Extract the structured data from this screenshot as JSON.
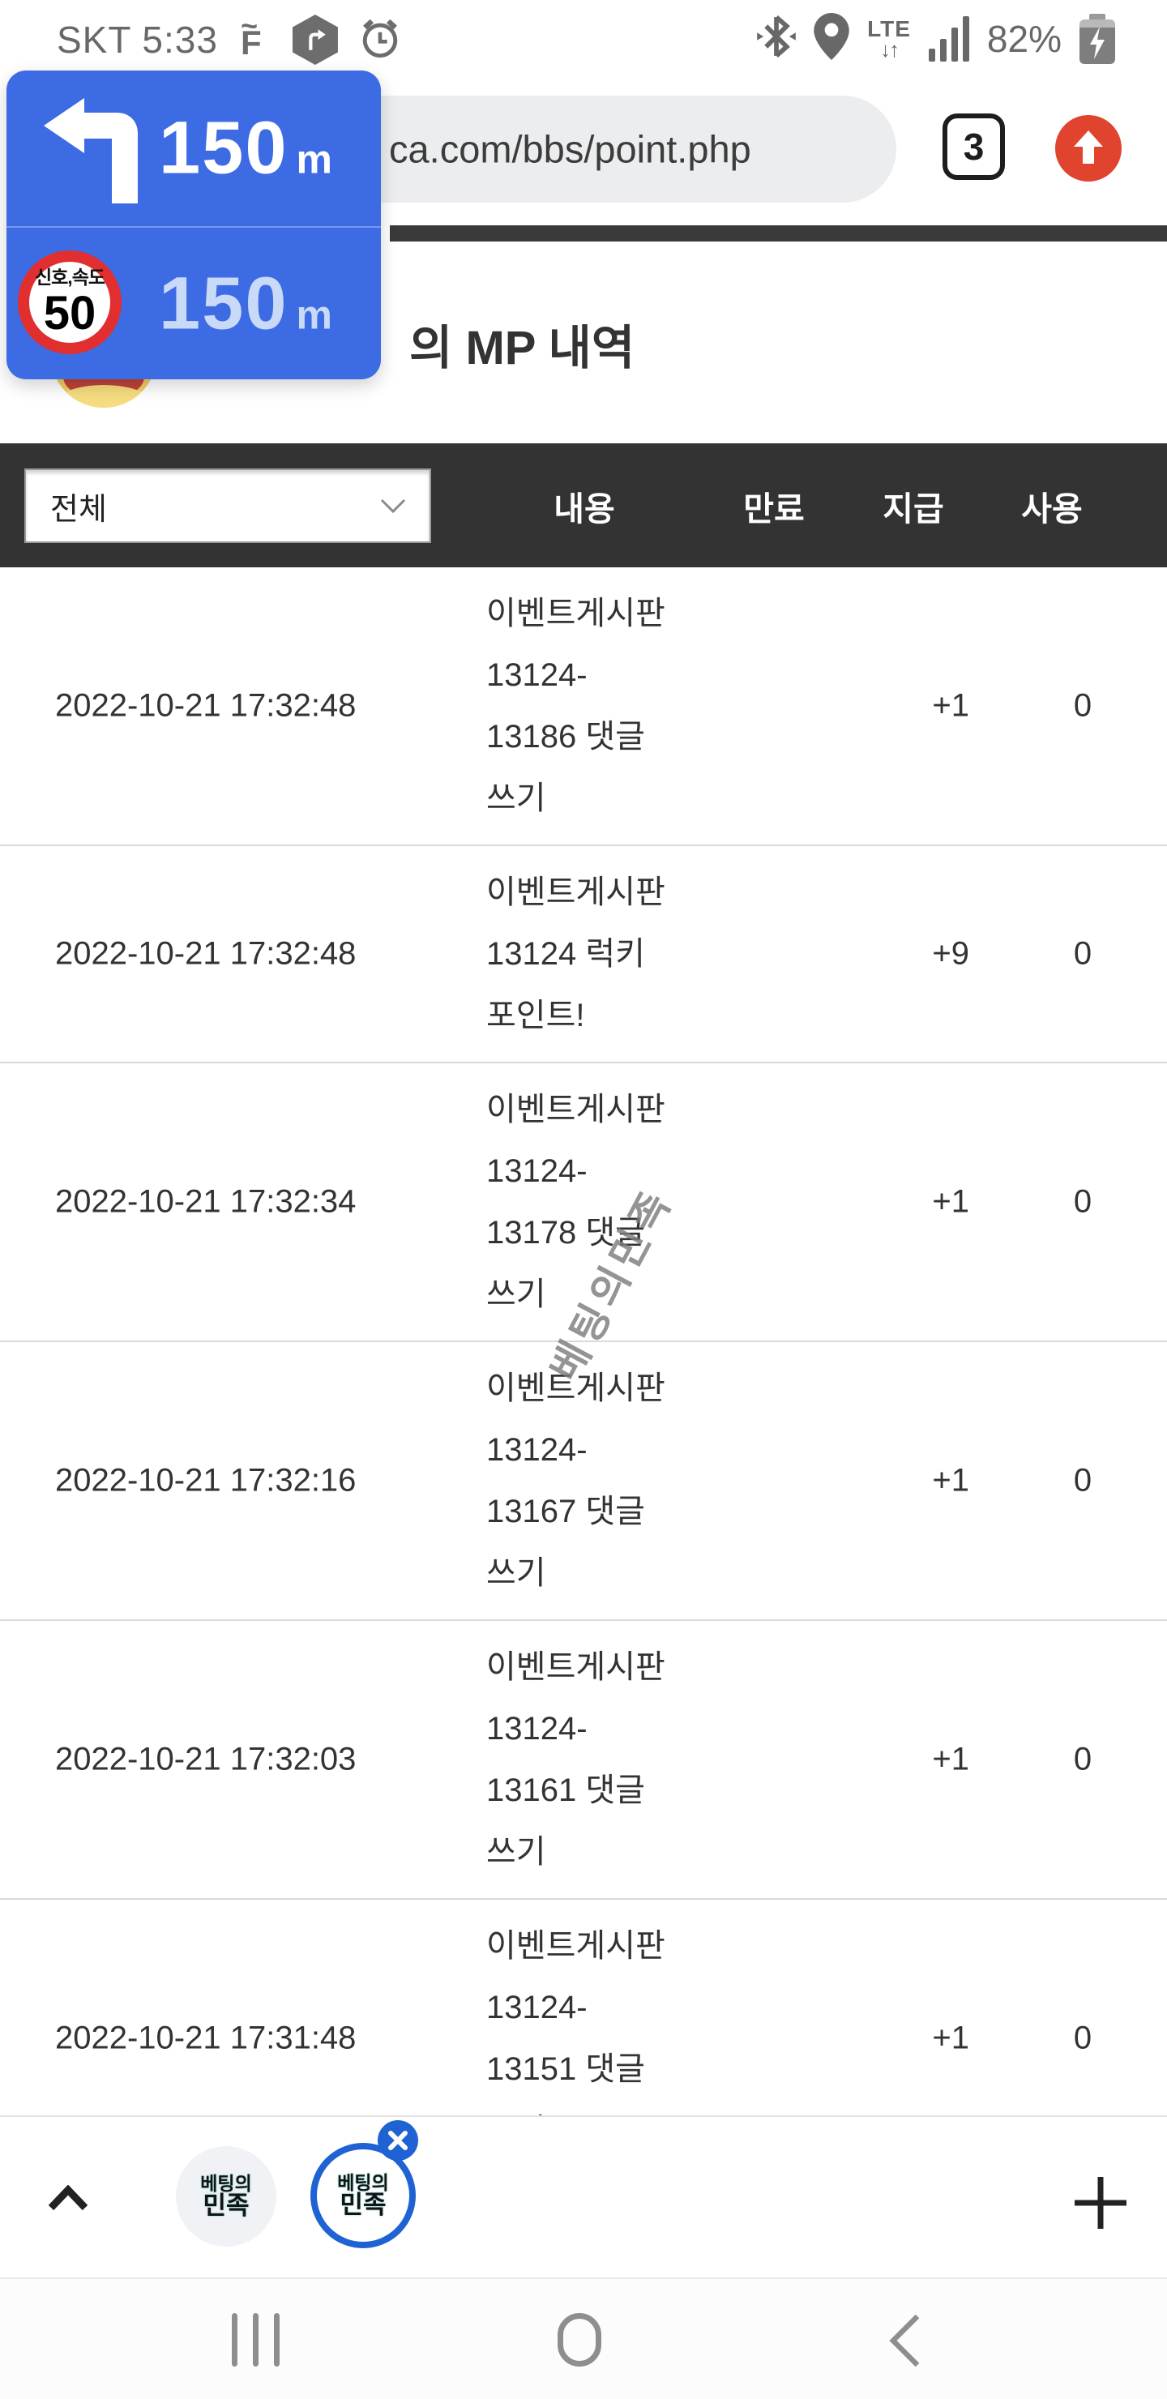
{
  "colors": {
    "overlay_blue": "#3d6be3",
    "overlay_pale_text": "#c9d9f8",
    "sign_red": "#e12f2f",
    "table_header_bg": "#333333",
    "bubble_blue": "#1f62d3",
    "browser_home_red": "#e0442f"
  },
  "status_bar": {
    "carrier_time": "SKT 5:33",
    "battery_percent": "82%",
    "network_label": "LTE",
    "network_arrows": "↓↑",
    "left_icons": [
      "f-app-icon",
      "navigation-hexagon-icon",
      "alarm-clock-icon"
    ],
    "right_icons": [
      "bluetooth-icon",
      "location-icon",
      "lte-updown-icon",
      "signal-bars-icon",
      "battery-charging-icon"
    ]
  },
  "browser": {
    "url": "ca.com/bbs/point.php",
    "tab_count": "3",
    "home_icon": "up-arrow-in-red-circle"
  },
  "nav_overlay": {
    "turn_icon": "left-turn-arrow",
    "turn_distance": "150",
    "turn_unit": "m",
    "sign_caption": "신호,속도",
    "sign_speed": "50",
    "second_distance": "150",
    "second_unit": "m"
  },
  "page": {
    "title_visible": "의 MP 내역",
    "filter_value": "전체",
    "columns": [
      "내용",
      "만료",
      "지급",
      "사용"
    ]
  },
  "table": {
    "rows": [
      {
        "date": "2022-10-21 17:32:48",
        "content_lines": [
          "이벤트게시판",
          "13124-",
          "13186 댓글",
          "쓰기"
        ],
        "grant": "+1",
        "used": "0"
      },
      {
        "date": "2022-10-21 17:32:48",
        "content_lines": [
          "이벤트게시판",
          "13124 럭키",
          "포인트!"
        ],
        "grant": "+9",
        "used": "0"
      },
      {
        "date": "2022-10-21 17:32:34",
        "content_lines": [
          "이벤트게시판",
          "13124-",
          "13178 댓글",
          "쓰기"
        ],
        "grant": "+1",
        "used": "0"
      },
      {
        "date": "2022-10-21 17:32:16",
        "content_lines": [
          "이벤트게시판",
          "13124-",
          "13167 댓글",
          "쓰기"
        ],
        "grant": "+1",
        "used": "0"
      },
      {
        "date": "2022-10-21 17:32:03",
        "content_lines": [
          "이벤트게시판",
          "13124-",
          "13161 댓글",
          "쓰기"
        ],
        "grant": "+1",
        "used": "0"
      },
      {
        "date": "2022-10-21 17:31:48",
        "content_lines": [
          "이벤트게시판",
          "13124-",
          "13151 댓글",
          "쓰기"
        ],
        "grant": "+1",
        "used": "0"
      }
    ]
  },
  "watermark": {
    "text": "베팅의민족"
  },
  "bottom_bar": {
    "collapse_icon": "chevron-up",
    "bubble_logo_line1": "베팅의",
    "bubble_logo_line2": "민족",
    "close_badge_icon": "x-in-blue-circle",
    "add_icon": "plus"
  },
  "android_nav": {
    "buttons": [
      "recents",
      "home",
      "back"
    ]
  }
}
